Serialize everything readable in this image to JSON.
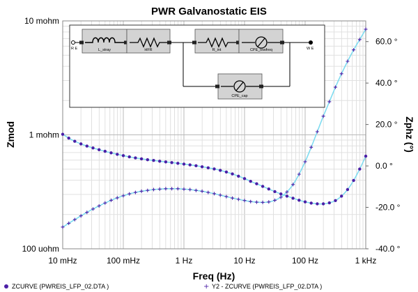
{
  "chart_data": {
    "type": "scatter",
    "title": "PWR Galvanostatic EIS",
    "xlabel": "Freq (Hz)",
    "ylabel_left": "Zmod",
    "ylabel_right": "Zphz (°)",
    "x_scale": "log",
    "xlim": [
      0.01,
      1000
    ],
    "x_ticks": [
      0.01,
      0.1,
      1,
      10,
      100,
      1000
    ],
    "x_tick_labels": [
      "10 mHz",
      "100 mHz",
      "1 Hz",
      "10 Hz",
      "100 Hz",
      "1 kHz"
    ],
    "y_left_scale": "log",
    "ylim_left": [
      0.0001,
      0.01
    ],
    "y_left_ticks": [
      0.0001,
      0.001,
      0.01
    ],
    "y_left_tick_labels": [
      "100 uohm",
      "1 mohm",
      "10 mohm"
    ],
    "ylim_right": [
      -40,
      70
    ],
    "y_right_ticks": [
      -40,
      -20,
      0,
      20,
      40,
      60
    ],
    "y_right_tick_labels": [
      "-40.0 °",
      "-20.0 °",
      "0.0 °",
      "20.0 °",
      "40.0 °",
      "60.0 °"
    ],
    "series": [
      {
        "name": "ZCURVE (PWREIS_LFP_02.DTA )",
        "axis": "left",
        "marker": "circle",
        "color": "#4b1fa6",
        "fit_color": "#7fdcf0",
        "x": [
          0.01,
          0.0126,
          0.0158,
          0.02,
          0.0251,
          0.0316,
          0.0398,
          0.05,
          0.063,
          0.0794,
          0.1,
          0.1259,
          0.1585,
          0.1995,
          0.2512,
          0.3162,
          0.3981,
          0.5012,
          0.631,
          0.7943,
          1.0,
          1.2589,
          1.5849,
          1.9953,
          2.5119,
          3.1623,
          3.9811,
          5.0119,
          6.3096,
          7.9433,
          10.0,
          12.589,
          15.849,
          19.953,
          25.119,
          31.623,
          39.811,
          50.119,
          63.096,
          79.433,
          100.0,
          125.89,
          158.49,
          199.53,
          251.19,
          316.23,
          398.11,
          501.19,
          630.96,
          794.33,
          1000.0
        ],
        "y": [
          0.001011,
          0.000936,
          0.000878,
          0.000833,
          0.000797,
          0.000767,
          0.000741,
          0.000717,
          0.000695,
          0.000675,
          0.000657,
          0.000641,
          0.000627,
          0.000616,
          0.000605,
          0.000596,
          0.000587,
          0.000579,
          0.000571,
          0.000563,
          0.000554,
          0.000545,
          0.000536,
          0.000525,
          0.000514,
          0.000502,
          0.000488,
          0.000472,
          0.000454,
          0.000434,
          0.000413,
          0.000391,
          0.000372,
          0.000353,
          0.000335,
          0.000318,
          0.000303,
          0.00029,
          0.000278,
          0.000267,
          0.000258,
          0.000252,
          0.000248,
          0.000248,
          0.000253,
          0.000265,
          0.00029,
          0.000331,
          0.000398,
          0.000501,
          0.00065
        ]
      },
      {
        "name": "Y2 - ZCURVE (PWREIS_LFP_02.DTA )",
        "axis": "right",
        "marker": "plus",
        "color": "#4b1fa6",
        "fit_color": "#7fdcf0",
        "x": [
          0.01,
          0.0126,
          0.0158,
          0.02,
          0.0251,
          0.0316,
          0.0398,
          0.05,
          0.063,
          0.0794,
          0.1,
          0.1259,
          0.1585,
          0.1995,
          0.2512,
          0.3162,
          0.3981,
          0.5012,
          0.631,
          0.7943,
          1.0,
          1.2589,
          1.5849,
          1.9953,
          2.5119,
          3.1623,
          3.9811,
          5.0119,
          6.3096,
          7.9433,
          10.0,
          12.589,
          15.849,
          19.953,
          25.119,
          31.623,
          39.811,
          50.119,
          63.096,
          79.433,
          100.0,
          125.89,
          158.49,
          199.53,
          251.19,
          316.23,
          398.11,
          501.19,
          630.96,
          794.33,
          1000.0
        ],
        "y": [
          -29.5,
          -27.7,
          -25.9,
          -24.1,
          -22.4,
          -20.8,
          -19.3,
          -17.9,
          -16.6,
          -15.4,
          -14.4,
          -13.5,
          -12.8,
          -12.2,
          -11.8,
          -11.4,
          -11.2,
          -11.0,
          -11.0,
          -11.0,
          -11.2,
          -11.4,
          -11.8,
          -12.2,
          -12.8,
          -13.4,
          -14.1,
          -14.8,
          -15.5,
          -16.1,
          -16.7,
          -17.2,
          -17.5,
          -17.6,
          -17.4,
          -16.6,
          -15.1,
          -12.6,
          -9.0,
          -4.0,
          2.0,
          9.0,
          16.5,
          24.0,
          31.0,
          38.0,
          44.5,
          50.5,
          56.0,
          61.0,
          66.0
        ]
      }
    ],
    "legend": [
      "ZCURVE (PWREIS_LFP_02.DTA )",
      "Y2 - ZCURVE (PWREIS_LFP_02.DTA )"
    ],
    "circuit": {
      "labels": [
        "R E",
        "L_stray",
        "HFR",
        "R_int",
        "CPE_lowfreq",
        "CPE_cap",
        "W E"
      ]
    }
  }
}
